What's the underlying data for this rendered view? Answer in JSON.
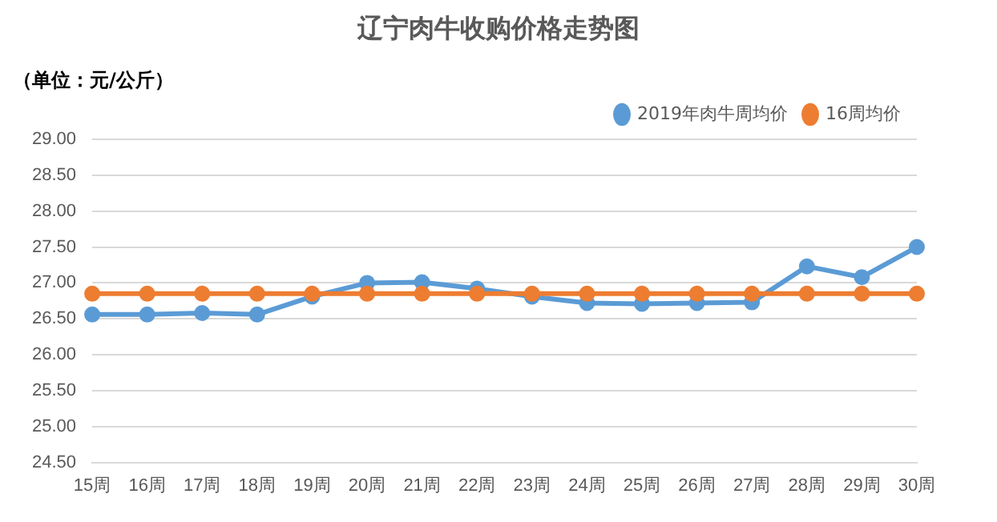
{
  "chart_data": {
    "type": "line",
    "title": "辽宁肉牛收购价格走势图",
    "ylabel": "（单位：元/公斤）",
    "categories": [
      "15周",
      "16周",
      "17周",
      "18周",
      "19周",
      "20周",
      "21周",
      "22周",
      "23周",
      "24周",
      "25周",
      "26周",
      "27周",
      "28周",
      "29周",
      "30周"
    ],
    "series": [
      {
        "name": "2019年肉牛周均价",
        "color": "#5b9bd5",
        "values": [
          26.56,
          26.56,
          26.58,
          26.56,
          26.81,
          27.0,
          27.01,
          26.92,
          26.81,
          26.72,
          26.71,
          26.72,
          26.73,
          27.23,
          27.08,
          27.5
        ]
      },
      {
        "name": "16周均价",
        "color": "#ed7d31",
        "values": [
          26.85,
          26.85,
          26.85,
          26.85,
          26.85,
          26.85,
          26.85,
          26.85,
          26.85,
          26.85,
          26.85,
          26.85,
          26.85,
          26.85,
          26.85,
          26.85
        ]
      }
    ],
    "ylim": [
      24.5,
      29.0
    ],
    "yticks": [
      {
        "value": 24.5,
        "label": "24.50"
      },
      {
        "value": 25,
        "label": "25.00"
      },
      {
        "value": 25.5,
        "label": "25.50"
      },
      {
        "value": 26,
        "label": "26.00"
      },
      {
        "value": 26.5,
        "label": "26.50"
      },
      {
        "value": 27,
        "label": "27.00"
      },
      {
        "value": 27.5,
        "label": "27.50"
      },
      {
        "value": 28,
        "label": "28.00"
      },
      {
        "value": 28.5,
        "label": "28.50"
      },
      {
        "value": 29,
        "label": "29.00"
      }
    ],
    "grid": "y",
    "legend": "top right",
    "marker": "circle",
    "line_style": "solid"
  }
}
